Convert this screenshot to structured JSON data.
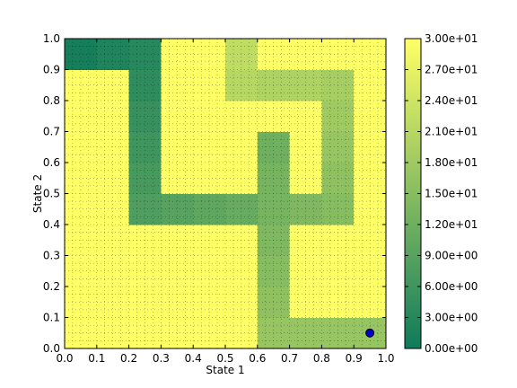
{
  "chart_data": {
    "type": "heatmap",
    "title": "",
    "xlabel": "State 1",
    "ylabel": "State 2",
    "xlim": [
      0.0,
      1.0
    ],
    "ylim": [
      0.0,
      1.0
    ],
    "x_ticks": [
      "0.0",
      "0.1",
      "0.2",
      "0.3",
      "0.4",
      "0.5",
      "0.6",
      "0.7",
      "0.8",
      "0.9",
      "1.0"
    ],
    "y_ticks": [
      "0.0",
      "0.1",
      "0.2",
      "0.3",
      "0.4",
      "0.5",
      "0.6",
      "0.7",
      "0.8",
      "0.9",
      "1.0"
    ],
    "grid": "dotted",
    "grid_size": [
      10,
      10
    ],
    "value_range": [
      0,
      30
    ],
    "colormap": [
      "#0f7a5c",
      "#ffff66"
    ],
    "cell_values_row0_bottom": [
      [
        30,
        30,
        30,
        30,
        30,
        30,
        17,
        17,
        17,
        17
      ],
      [
        30,
        30,
        30,
        30,
        30,
        30,
        16,
        30,
        30,
        30
      ],
      [
        30,
        30,
        30,
        30,
        30,
        30,
        15,
        30,
        30,
        30
      ],
      [
        30,
        30,
        30,
        30,
        30,
        30,
        14,
        30,
        30,
        30
      ],
      [
        30,
        30,
        8,
        9,
        10,
        11,
        13,
        14,
        15,
        30
      ],
      [
        30,
        30,
        7,
        30,
        30,
        30,
        13,
        30,
        16,
        30
      ],
      [
        30,
        30,
        6,
        30,
        30,
        30,
        12,
        30,
        17,
        30
      ],
      [
        30,
        30,
        5,
        30,
        30,
        30,
        30,
        30,
        18,
        30
      ],
      [
        30,
        30,
        4,
        30,
        30,
        21,
        20,
        20,
        19,
        30
      ],
      [
        1,
        2,
        3,
        30,
        30,
        22,
        30,
        30,
        30,
        30
      ]
    ],
    "colorbar": {
      "min": 0,
      "max": 30,
      "tick_labels": [
        "0.00e+00",
        "3.00e+00",
        "6.00e+00",
        "9.00e+00",
        "1.20e+01",
        "1.50e+01",
        "1.80e+01",
        "2.10e+01",
        "2.40e+01",
        "2.70e+01",
        "3.00e+01"
      ]
    },
    "marker": {
      "x": 0.95,
      "y": 0.05,
      "color": "#0000cc"
    }
  }
}
